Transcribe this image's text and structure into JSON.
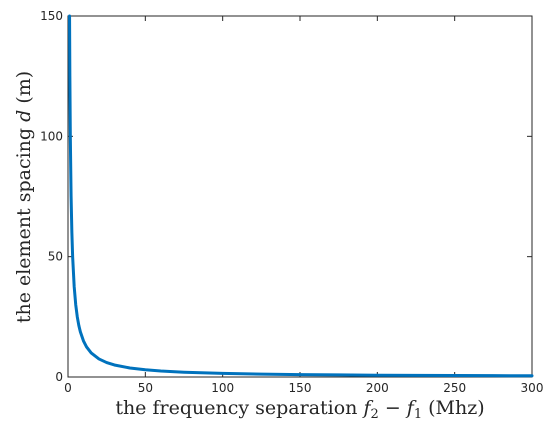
{
  "chart_data": {
    "type": "line",
    "title": "",
    "xlabel_parts": {
      "prefix": "the frequency separation ",
      "f2_base": "f",
      "f2_sub": "2",
      "minus": " − ",
      "f1_base": "f",
      "f1_sub": "1",
      "suffix": " (Mhz)"
    },
    "ylabel_parts": {
      "prefix": "the element spacing ",
      "var": "d",
      "suffix": " (m)"
    },
    "xlim": [
      0,
      300
    ],
    "ylim": [
      0,
      150
    ],
    "xticks": [
      0,
      50,
      100,
      150,
      200,
      250,
      300
    ],
    "yticks": [
      0,
      50,
      100,
      150
    ],
    "grid": false,
    "line_color": "#0072BD",
    "series": [
      {
        "values": [
          [
            1,
            150
          ],
          [
            1.2,
            125
          ],
          [
            1.5,
            100
          ],
          [
            2,
            75
          ],
          [
            2.5,
            60
          ],
          [
            3,
            50
          ],
          [
            4,
            37.5
          ],
          [
            5,
            30
          ],
          [
            6,
            25
          ],
          [
            7,
            21.4
          ],
          [
            8,
            18.75
          ],
          [
            10,
            15
          ],
          [
            12,
            12.5
          ],
          [
            15,
            10
          ],
          [
            20,
            7.5
          ],
          [
            25,
            6
          ],
          [
            30,
            5
          ],
          [
            40,
            3.75
          ],
          [
            50,
            3
          ],
          [
            60,
            2.5
          ],
          [
            75,
            2
          ],
          [
            100,
            1.5
          ],
          [
            125,
            1.2
          ],
          [
            150,
            1
          ],
          [
            175,
            0.86
          ],
          [
            200,
            0.75
          ],
          [
            225,
            0.67
          ],
          [
            250,
            0.6
          ],
          [
            275,
            0.55
          ],
          [
            300,
            0.5
          ]
        ]
      }
    ]
  }
}
